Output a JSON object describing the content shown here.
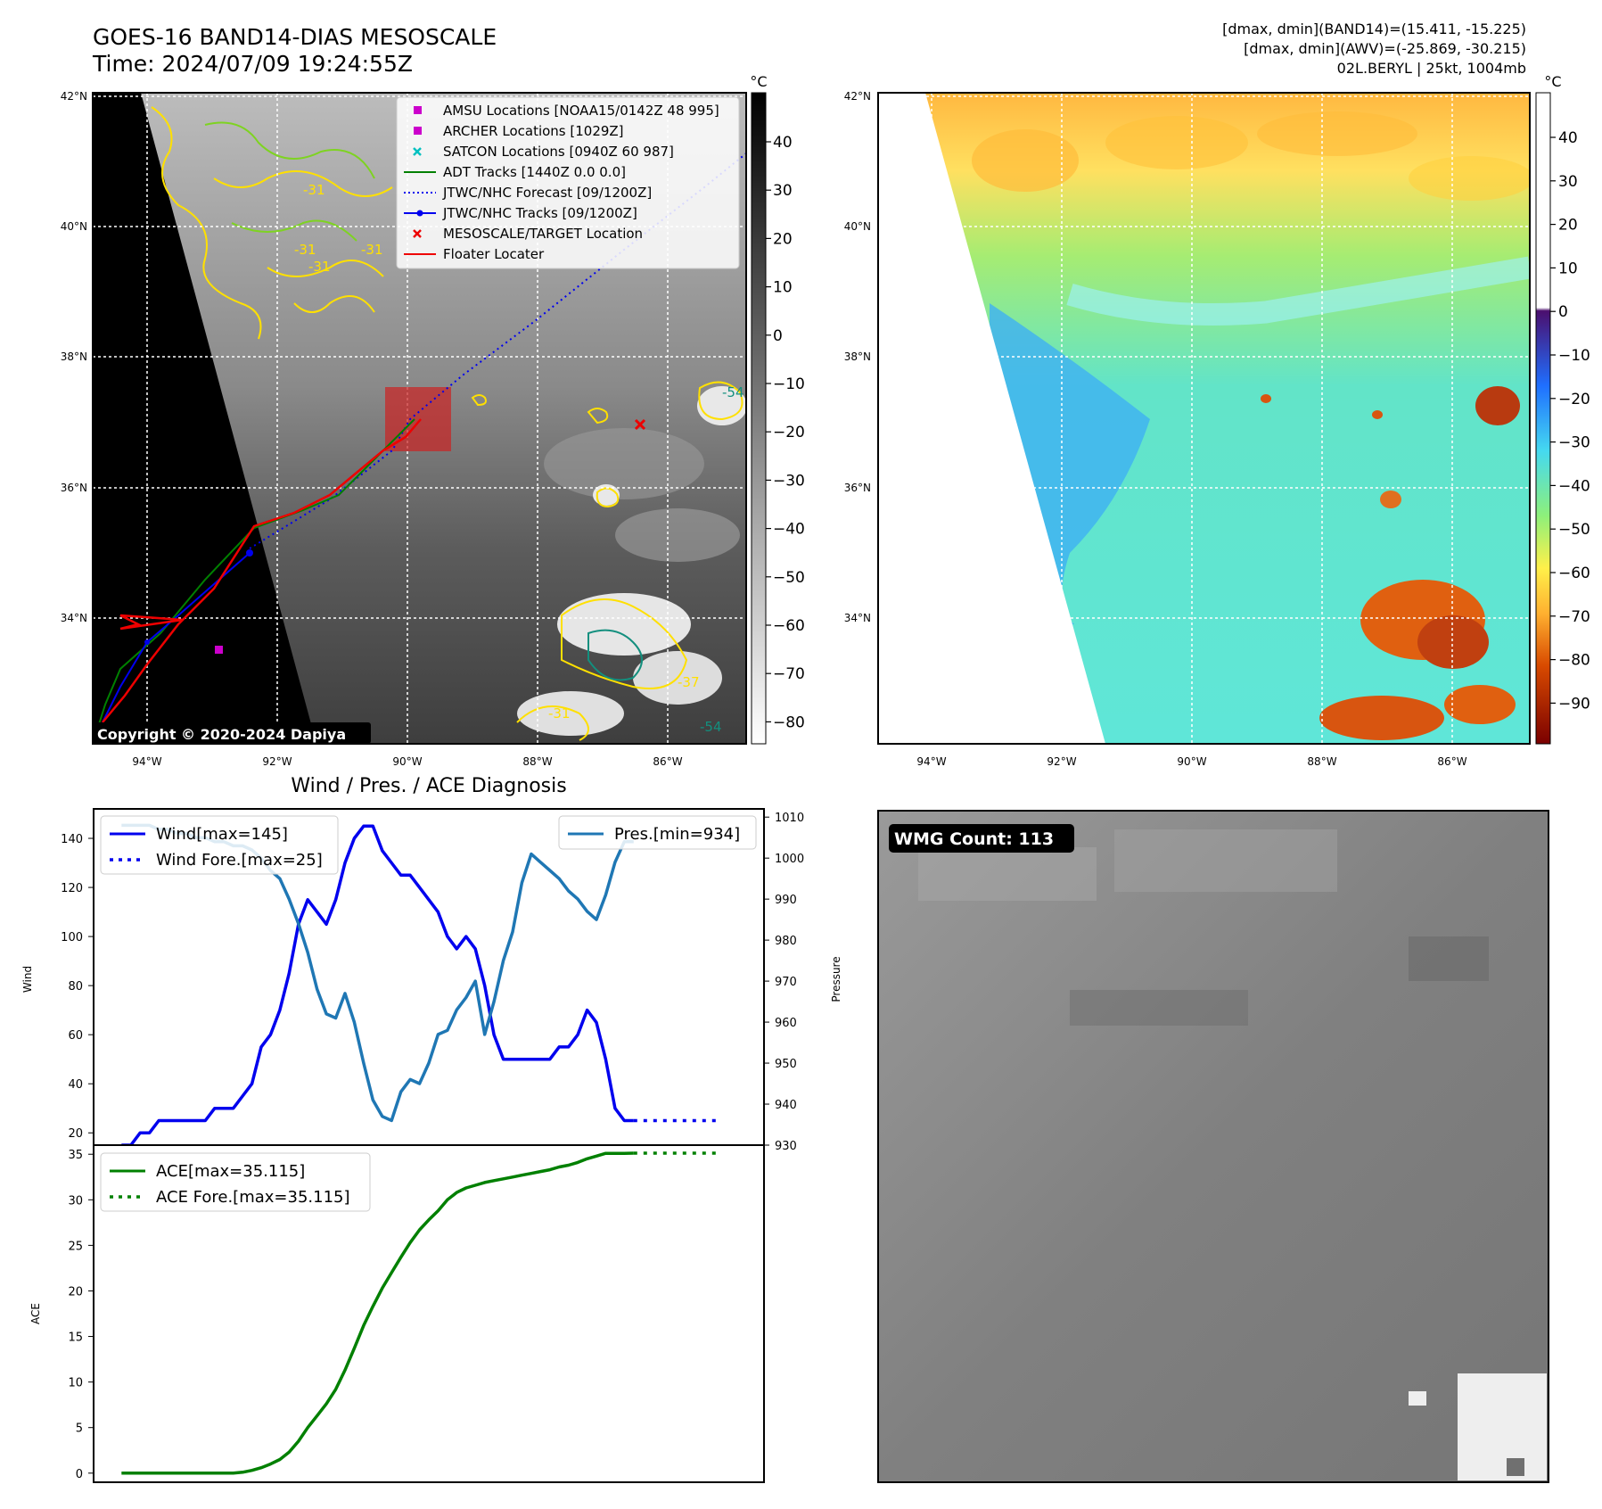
{
  "header": {
    "title_line1": "GOES-16 BAND14-DIAS MESOSCALE",
    "title_line2": "Time: 2024/07/09 19:24:55Z",
    "info_line1": "[dmax, dmin](BAND14)=(15.411, -15.225)",
    "info_line2": "[dmax, dmin](AWV)=(-25.869, -30.215)",
    "info_line3": "02L.BERYL | 25kt, 1004mb"
  },
  "colors": {
    "wind": "#0000ee",
    "pressure": "#1f77b4",
    "ace": "#008000",
    "track_red": "#ee0000",
    "contour_yellow": "#ffe000",
    "contour_green": "#7ed321",
    "contour_teal": "#138f7e"
  },
  "map_left": {
    "unit": "°C",
    "colorbar_ticks": [
      "40",
      "30",
      "20",
      "10",
      "0",
      "−10",
      "−20",
      "−30",
      "−40",
      "−50",
      "−60",
      "−70",
      "−80"
    ],
    "lat_labels": [
      "42°N",
      "40°N",
      "38°N",
      "36°N",
      "34°N"
    ],
    "lon_labels": [
      "94°W",
      "92°W",
      "90°W",
      "88°W",
      "86°W"
    ],
    "contour_labels": [
      "-31",
      "-31",
      "-31",
      "-31",
      "-54",
      "-37",
      "-54",
      "-31"
    ],
    "copyright": "Copyright © 2020-2024 Dapiya",
    "legend": [
      {
        "label": "AMSU Locations [NOAA15/0142Z 48 995]",
        "marker": "square",
        "color": "#cc00cc"
      },
      {
        "label": "ARCHER Locations [1029Z]",
        "marker": "square",
        "color": "#cc00cc"
      },
      {
        "label": "SATCON Locations [0940Z 60 987]",
        "marker": "x",
        "color": "#00c0c0"
      },
      {
        "label": "ADT Tracks [1440Z 0.0 0.0]",
        "marker": "line",
        "color": "#008000"
      },
      {
        "label": "JTWC/NHC Forecast [09/1200Z]",
        "marker": "dotted",
        "color": "#0000ee"
      },
      {
        "label": "JTWC/NHC Tracks [09/1200Z]",
        "marker": "line-dot",
        "color": "#0000ee"
      },
      {
        "label": "MESOSCALE/TARGET Location",
        "marker": "x",
        "color": "#ee0000"
      },
      {
        "label": "Floater Locater",
        "marker": "line",
        "color": "#ee0000"
      }
    ]
  },
  "map_right": {
    "unit": "°C",
    "colorbar_ticks": [
      "40",
      "30",
      "20",
      "10",
      "0",
      "−10",
      "−20",
      "−30",
      "−40",
      "−50",
      "−60",
      "−70",
      "−80",
      "−90"
    ],
    "lat_labels": [
      "42°N",
      "40°N",
      "38°N",
      "36°N",
      "34°N"
    ],
    "lon_labels": [
      "94°W",
      "92°W",
      "90°W",
      "88°W",
      "86°W"
    ]
  },
  "wmg": {
    "label": "WMG Count: 113"
  },
  "chart_data": [
    {
      "type": "line",
      "title": "Wind / Pres. / ACE Diagnosis",
      "ylabel": "Wind",
      "y2label": "Pressure",
      "ylim": [
        15,
        152
      ],
      "y2lim": [
        930,
        1012
      ],
      "yticks": [
        20,
        40,
        60,
        80,
        100,
        120,
        140
      ],
      "y2ticks": [
        930,
        940,
        950,
        960,
        970,
        980,
        990,
        1000,
        1010
      ],
      "legend_left": [
        "Wind[max=145]",
        "Wind Fore.[max=25]"
      ],
      "legend_right": [
        "Pres.[min=934]"
      ],
      "series": [
        {
          "name": "Wind[max=145]",
          "axis": "left",
          "style": "solid",
          "values": [
            15,
            15,
            20,
            20,
            25,
            25,
            25,
            25,
            25,
            25,
            30,
            30,
            30,
            35,
            40,
            55,
            60,
            70,
            85,
            105,
            115,
            110,
            105,
            115,
            130,
            140,
            145,
            145,
            135,
            130,
            125,
            125,
            120,
            115,
            110,
            100,
            95,
            100,
            95,
            80,
            60,
            50,
            50,
            50,
            50,
            50,
            50,
            55,
            55,
            60,
            70,
            65,
            50,
            30,
            25,
            25
          ]
        },
        {
          "name": "Wind Fore.[max=25]",
          "axis": "left",
          "style": "dotted",
          "values": [
            25,
            25,
            25,
            25,
            25,
            25,
            25,
            25,
            25,
            25
          ]
        },
        {
          "name": "Pres.[min=934]",
          "axis": "right",
          "style": "solid",
          "values": [
            1008,
            1008,
            1008,
            1008,
            1007,
            1007,
            1006,
            1006,
            1005,
            1005,
            1004,
            1004,
            1003,
            1003,
            1002,
            1000,
            997,
            995,
            990,
            984,
            977,
            968,
            962,
            961,
            967,
            960,
            950,
            941,
            937,
            936,
            943,
            946,
            945,
            950,
            957,
            958,
            963,
            966,
            970,
            957,
            965,
            975,
            982,
            994,
            1001,
            999,
            997,
            995,
            992,
            990,
            987,
            985,
            991,
            999,
            1004,
            1004
          ]
        }
      ]
    },
    {
      "type": "line",
      "ylabel": "ACE",
      "ylim": [
        -1,
        36
      ],
      "yticks": [
        0,
        5,
        10,
        15,
        20,
        25,
        30,
        35
      ],
      "legend": [
        "ACE[max=35.115]",
        "ACE Fore.[max=35.115]"
      ],
      "series": [
        {
          "name": "ACE[max=35.115]",
          "style": "solid",
          "values": [
            0,
            0,
            0,
            0,
            0,
            0,
            0,
            0,
            0,
            0,
            0,
            0,
            0,
            0.1,
            0.3,
            0.6,
            1.0,
            1.5,
            2.3,
            3.5,
            5.0,
            6.3,
            7.6,
            9.2,
            11.3,
            13.7,
            16.2,
            18.3,
            20.3,
            22.0,
            23.7,
            25.3,
            26.7,
            27.8,
            28.8,
            30.0,
            30.8,
            31.3,
            31.6,
            31.9,
            32.1,
            32.3,
            32.5,
            32.7,
            32.9,
            33.1,
            33.3,
            33.6,
            33.8,
            34.1,
            34.5,
            34.8,
            35.1,
            35.1,
            35.1,
            35.115
          ]
        },
        {
          "name": "ACE Fore.[max=35.115]",
          "style": "dotted",
          "values": [
            35.115,
            35.115,
            35.115,
            35.115,
            35.115,
            35.115,
            35.115,
            35.115,
            35.115,
            35.115
          ]
        }
      ]
    }
  ]
}
